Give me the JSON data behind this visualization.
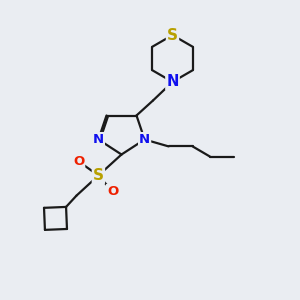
{
  "bg_color": "#eaedf2",
  "bond_color": "#1a1a1a",
  "bond_width": 1.6,
  "fig_width": 3.0,
  "fig_height": 3.0,
  "dpi": 100,
  "colors": {
    "N": "#1010ee",
    "S_thio": "#b8a000",
    "S_sul": "#b8a000",
    "O": "#ee2000",
    "C": "#1a1a1a"
  },
  "fontsize": 9.5
}
